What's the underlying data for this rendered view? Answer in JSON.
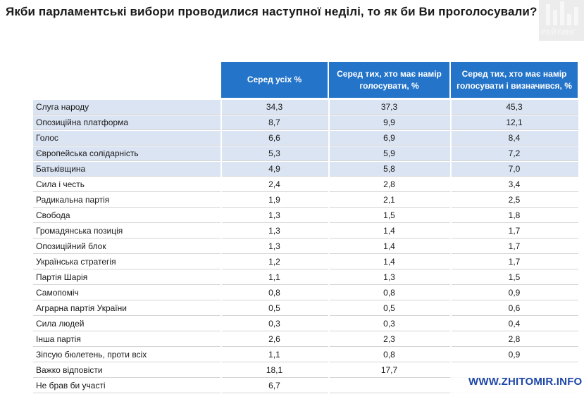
{
  "chart_data": {
    "type": "table",
    "title": "Якби парламентські вибори проводилися наступної неділі, то як би Ви проголосували?",
    "columns": [
      "Серед усіх %",
      "Серед тих, хто має намір голосувати, %",
      "Серед тих, хто має намір голосувати і визначився, %"
    ],
    "rows": [
      {
        "party": "Слуга народу",
        "values": [
          "34,3",
          "37,3",
          "45,3"
        ]
      },
      {
        "party": "Опозиційна платформа",
        "values": [
          "8,7",
          "9,9",
          "12,1"
        ]
      },
      {
        "party": "Голос",
        "values": [
          "6,6",
          "6,9",
          "8,4"
        ]
      },
      {
        "party": "Європейська солідарність",
        "values": [
          "5,3",
          "5,9",
          "7,2"
        ]
      },
      {
        "party": "Батьківщина",
        "values": [
          "4,9",
          "5,8",
          "7,0"
        ]
      },
      {
        "party": "Сила і честь",
        "values": [
          "2,4",
          "2,8",
          "3,4"
        ]
      },
      {
        "party": "Радикальна партія",
        "values": [
          "1,9",
          "2,1",
          "2,5"
        ]
      },
      {
        "party": "Свобода",
        "values": [
          "1,3",
          "1,5",
          "1,8"
        ]
      },
      {
        "party": "Громадянська позиція",
        "values": [
          "1,3",
          "1,4",
          "1,7"
        ]
      },
      {
        "party": "Опозиційний блок",
        "values": [
          "1,3",
          "1,4",
          "1,7"
        ]
      },
      {
        "party": "Українська стратегія",
        "values": [
          "1,2",
          "1,4",
          "1,7"
        ]
      },
      {
        "party": "Партія Шарія",
        "values": [
          "1,1",
          "1,3",
          "1,5"
        ]
      },
      {
        "party": "Самопоміч",
        "values": [
          "0,8",
          "0,8",
          "0,9"
        ]
      },
      {
        "party": "Аграрна партія України",
        "values": [
          "0,5",
          "0,5",
          "0,6"
        ]
      },
      {
        "party": "Сила людей",
        "values": [
          "0,3",
          "0,3",
          "0,4"
        ]
      },
      {
        "party": "Інша партія",
        "values": [
          "2,6",
          "2,3",
          "2,8"
        ]
      },
      {
        "party": "Зіпсую бюлетень, проти всіх",
        "values": [
          "1,1",
          "0,8",
          "0,9"
        ]
      },
      {
        "party": "Важко відповісти",
        "values": [
          "18,1",
          "17,7",
          ""
        ]
      },
      {
        "party": "Не брав би участі",
        "values": [
          "6,7",
          "",
          ""
        ]
      }
    ],
    "highlighted_rows": 5
  },
  "logo": {
    "text": "РЕЙТИНГ"
  },
  "watermark": {
    "text": "WWW.ZHITOMIR.INFO"
  },
  "colors": {
    "header": "#2474c9",
    "shade": "#dbe4f2",
    "watermark": "#1d46a8"
  }
}
